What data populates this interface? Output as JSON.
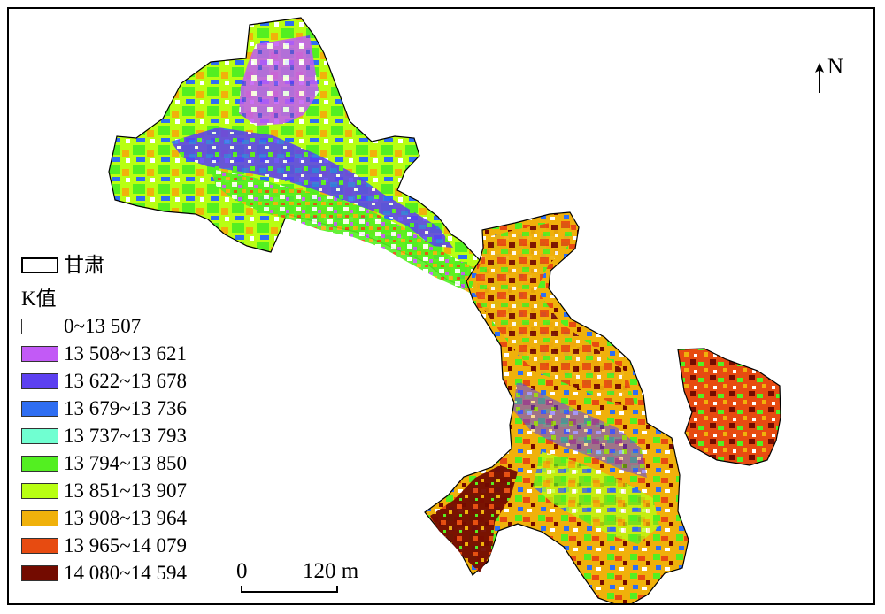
{
  "map": {
    "north_label": "N",
    "scale": {
      "start": "0",
      "end": "120 m"
    },
    "legend": {
      "region_label": "甘肃",
      "value_title": "K值",
      "items": [
        {
          "label": "0~13 507",
          "color": "#ffffff"
        },
        {
          "label": "13 508~13 621",
          "color": "#c25af6"
        },
        {
          "label": "13 622~13 678",
          "color": "#5c40f0"
        },
        {
          "label": "13 679~13 736",
          "color": "#2f6ef2"
        },
        {
          "label": "13 737~13 793",
          "color": "#70ffd1"
        },
        {
          "label": "13 794~13 850",
          "color": "#53ef21"
        },
        {
          "label": "13 851~13 907",
          "color": "#b8ff13"
        },
        {
          "label": "13 908~13 964",
          "color": "#f0b10b"
        },
        {
          "label": "13 965~14 079",
          "color": "#e74b11"
        },
        {
          "label": "14 080~14 594",
          "color": "#730b00"
        }
      ]
    },
    "colors": {
      "outline": "#000000",
      "background": "#ffffff"
    }
  }
}
